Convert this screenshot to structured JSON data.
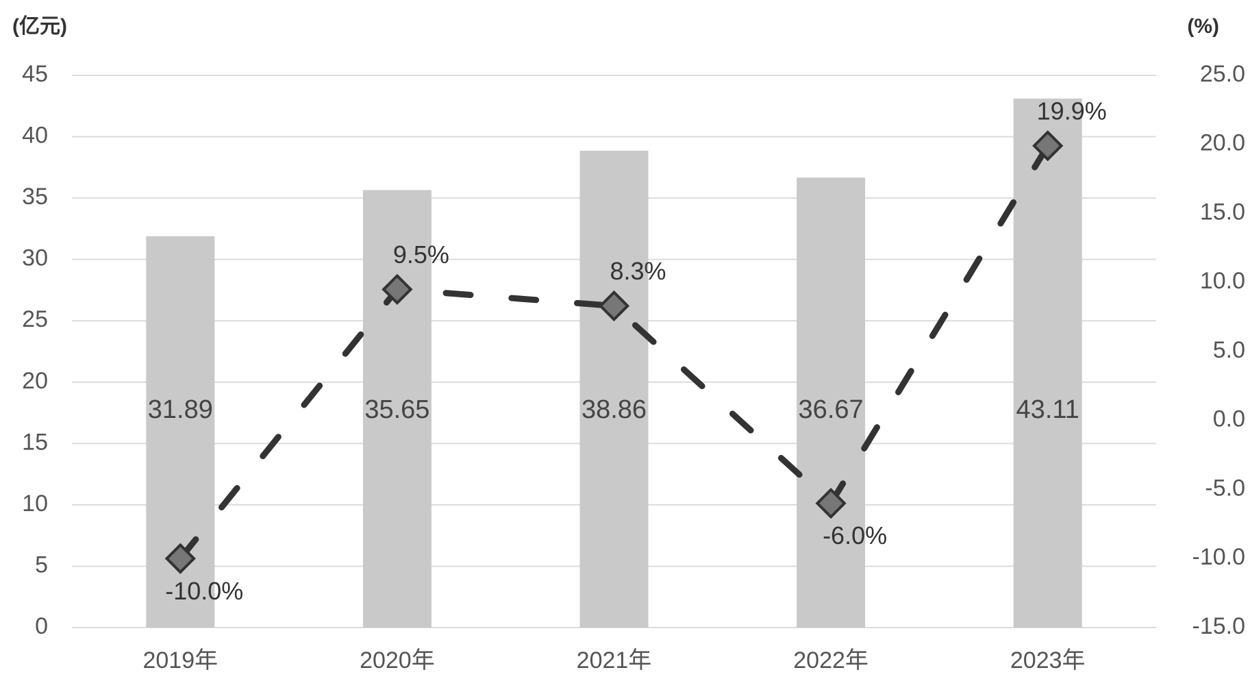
{
  "chart_data": {
    "type": "bar",
    "y_label": "(亿元)",
    "y2_label": "(%)",
    "categories": [
      "2019年",
      "2020年",
      "2021年",
      "2022年",
      "2023年"
    ],
    "series": [
      {
        "type": "bar",
        "color": "#c9c9c9",
        "values": [
          31.89,
          35.65,
          38.86,
          36.67,
          43.11
        ]
      },
      {
        "type": "line",
        "axis": "y2",
        "color": "#333333",
        "values": [
          -10.0,
          9.5,
          8.3,
          -6.0,
          19.9
        ],
        "value_labels": [
          "-10.0%",
          "9.5%",
          "8.3%",
          "-6.0%",
          "19.9%"
        ]
      }
    ],
    "ylim": [
      0,
      45
    ],
    "yticks": [
      0,
      5,
      10,
      15,
      20,
      25,
      30,
      35,
      40,
      45
    ],
    "y2lim": [
      -15,
      25
    ],
    "y2ticks": [
      {
        "value": -15,
        "label": "-15.0"
      },
      {
        "value": -10,
        "label": "-10.0"
      },
      {
        "value": -5,
        "label": "-5.0"
      },
      {
        "value": 0,
        "label": "0.0"
      },
      {
        "value": 5,
        "label": "5.0"
      },
      {
        "value": 10,
        "label": "10.0"
      },
      {
        "value": 15,
        "label": "15.0"
      },
      {
        "value": 20,
        "label": "20.0"
      },
      {
        "value": 25,
        "label": "25.0"
      }
    ],
    "grid": true
  }
}
